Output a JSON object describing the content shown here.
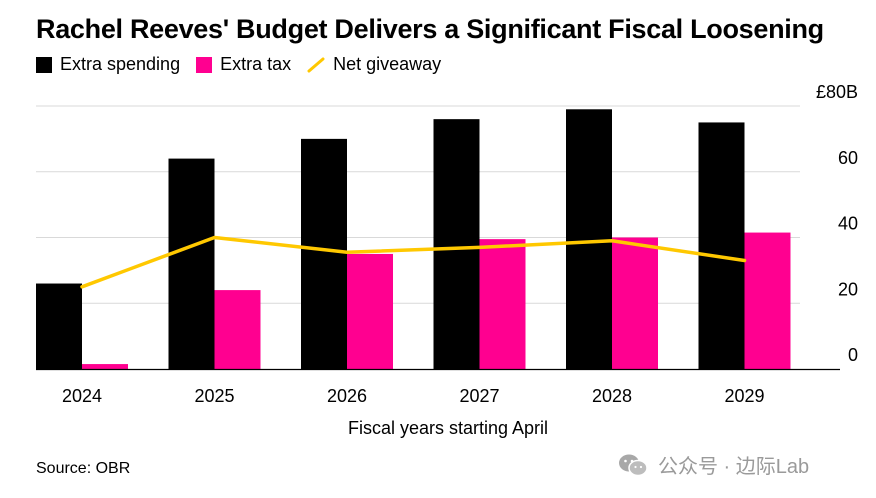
{
  "title": "Rachel Reeves' Budget Delivers a Significant Fiscal Loosening",
  "legend": {
    "items": [
      {
        "label": "Extra spending",
        "color": "#000000",
        "kind": "bar"
      },
      {
        "label": "Extra tax",
        "color": "#ff0090",
        "kind": "bar"
      },
      {
        "label": "Net giveaway",
        "color": "#ffc800",
        "kind": "line"
      }
    ]
  },
  "source": "Source: OBR",
  "watermark": {
    "text": "公众号 · 边际Lab",
    "icon": "wechat-icon"
  },
  "chart_data": {
    "type": "bar",
    "title": "Rachel Reeves' Budget Delivers a Significant Fiscal Loosening",
    "categories": [
      "2024",
      "2025",
      "2026",
      "2027",
      "2028",
      "2029"
    ],
    "xlabel": "Fiscal years starting April",
    "ylabel": "",
    "ylim": [
      0,
      80
    ],
    "y_ticks": [
      0,
      20,
      40,
      60,
      80
    ],
    "y_tick_labels": [
      "0",
      "20",
      "40",
      "60",
      "£80B"
    ],
    "grid": true,
    "legend_position": "top-left",
    "series": [
      {
        "name": "Extra spending",
        "type": "bar",
        "color": "#000000",
        "values": [
          26,
          64,
          70,
          76,
          79,
          75
        ]
      },
      {
        "name": "Extra tax",
        "type": "bar",
        "color": "#ff0090",
        "values": [
          1.5,
          24,
          35,
          39.5,
          40,
          41.5
        ]
      },
      {
        "name": "Net giveaway",
        "type": "line",
        "color": "#ffc800",
        "values": [
          25,
          40,
          35.5,
          37,
          39,
          33
        ]
      }
    ]
  }
}
